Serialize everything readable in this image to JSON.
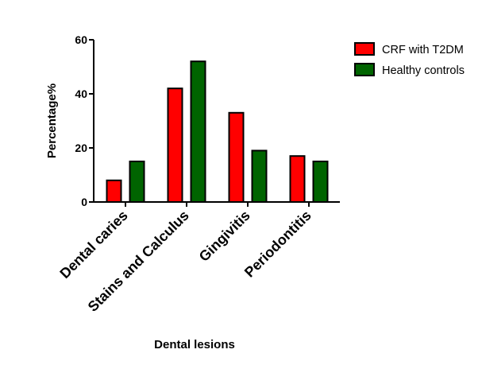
{
  "chart_data": {
    "type": "bar",
    "title": "",
    "xlabel": "Dental lesions",
    "ylabel": "Percentage%",
    "ylim": [
      0,
      60
    ],
    "yticks": [
      0,
      20,
      40,
      60
    ],
    "categories": [
      "Dental caries",
      "Stains and Calculus",
      "Gingivitis",
      "Periodontitis"
    ],
    "series": [
      {
        "name": "CRF with T2DM",
        "color": "#ff0000",
        "values": [
          8,
          42,
          33,
          17
        ]
      },
      {
        "name": "Healthy controls",
        "color": "#006400",
        "values": [
          15,
          52,
          19,
          15
        ]
      }
    ],
    "grid": false,
    "legend_position": "top-right"
  }
}
